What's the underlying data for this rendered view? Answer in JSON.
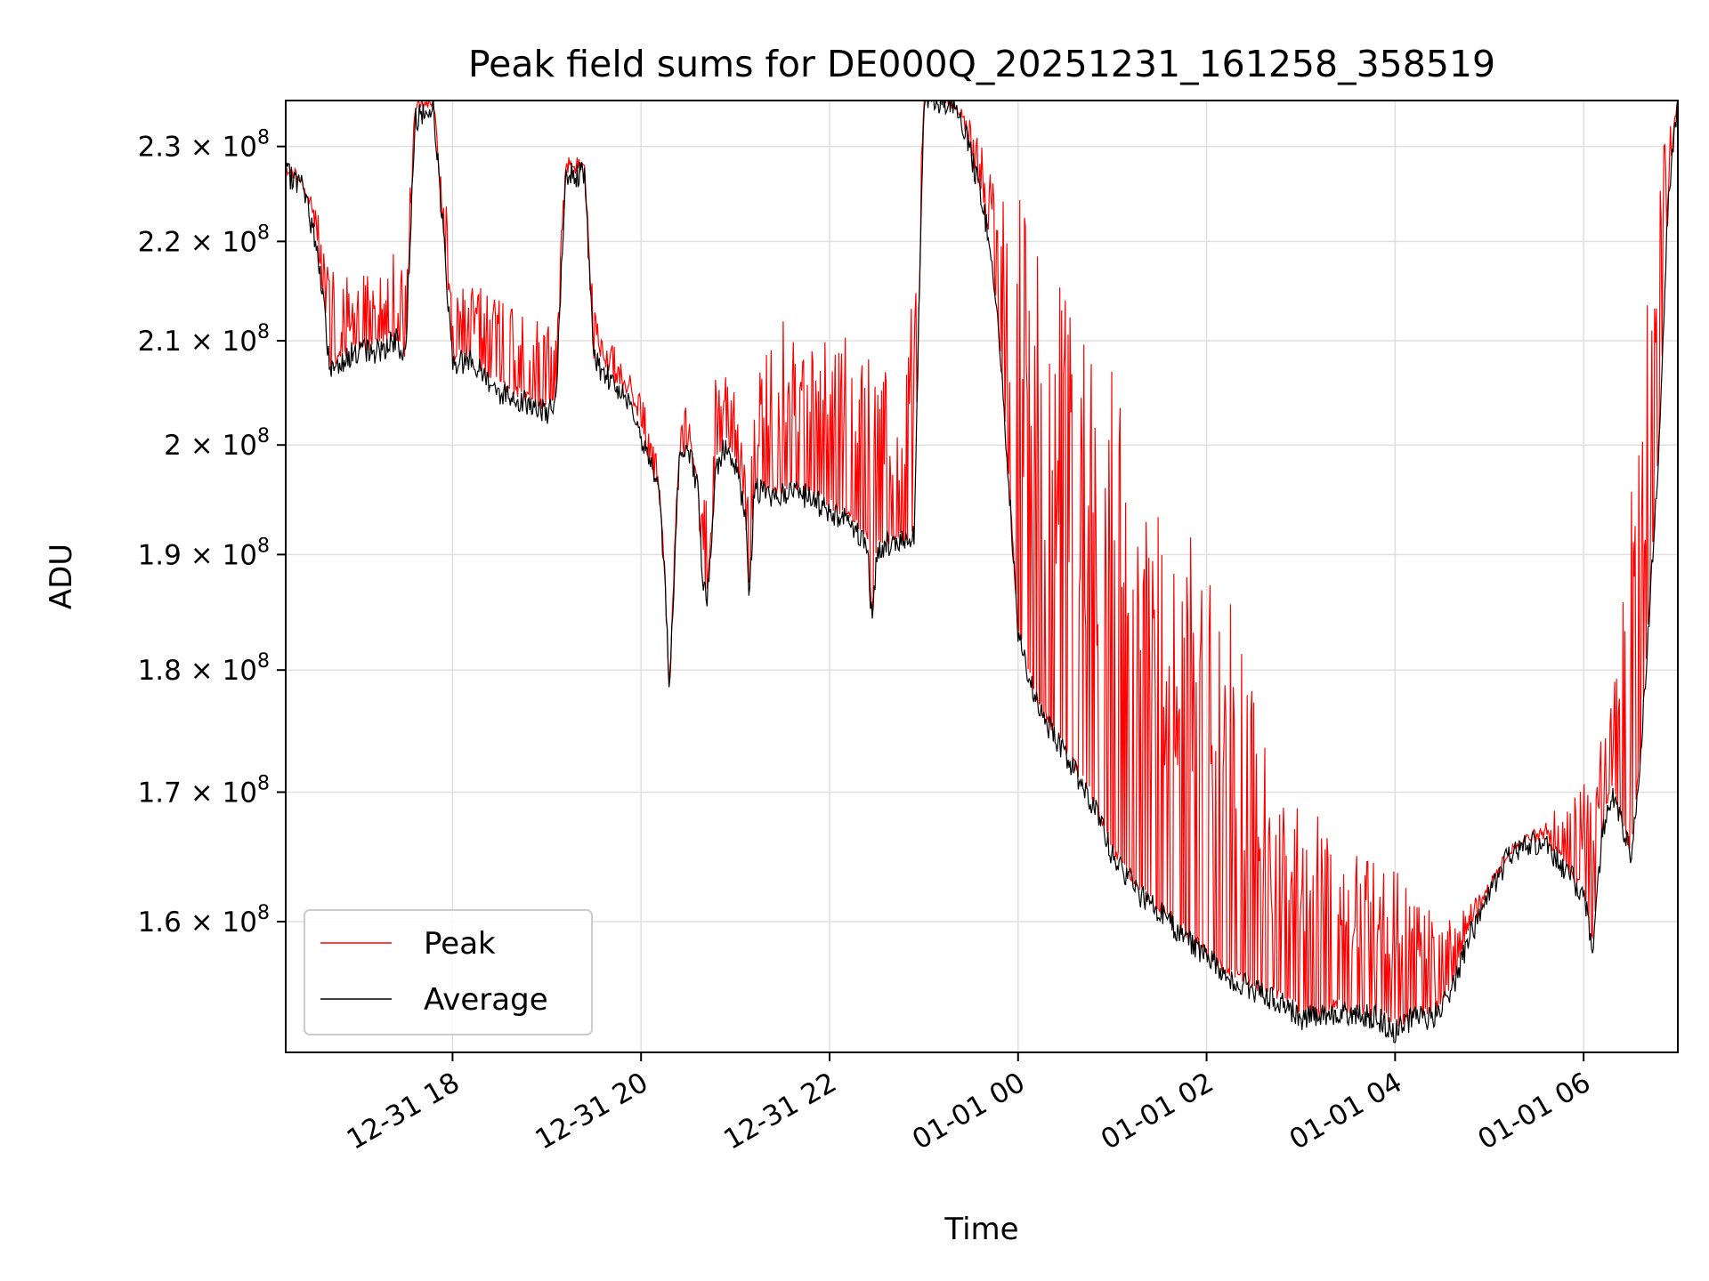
{
  "chart_data": {
    "type": "line",
    "title": "Peak field sums for DE000Q_20251231_161258_358519",
    "xlabel": "Time",
    "ylabel": "ADU",
    "x_tick_labels": [
      "12-31 18",
      "12-31 20",
      "12-31 22",
      "01-01 00",
      "01-01 02",
      "01-01 04",
      "01-01 06"
    ],
    "x_tick_hours": [
      18,
      20,
      22,
      24,
      26,
      28,
      30
    ],
    "xlim_hours": [
      16.23,
      31.0
    ],
    "y_tick_values": [
      160000000.0,
      170000000.0,
      180000000.0,
      190000000.0,
      200000000.0,
      210000000.0,
      220000000.0,
      230000000.0
    ],
    "y_tick_mantissa": [
      "1.6",
      "1.7",
      "1.8",
      "1.9",
      "2",
      "2.1",
      "2.2",
      "2.3"
    ],
    "y_tick_base": "10",
    "y_tick_exp": "8",
    "ylim": [
      150500000.0,
      235000000.0
    ],
    "y_scale": "log",
    "grid": true,
    "legend_position": "lower-left",
    "series": [
      {
        "name": "Peak",
        "color": "#ff0000",
        "x_hours": [
          16.23,
          16.5,
          16.8,
          17.0,
          17.3,
          17.5,
          17.6,
          17.8,
          18.0,
          18.5,
          19.0,
          19.1,
          19.2,
          19.4,
          19.5,
          19.8,
          20.0,
          20.2,
          20.3,
          20.4,
          20.5,
          20.6,
          20.8,
          21.0,
          21.1,
          21.3,
          21.5,
          21.7,
          22.0,
          22.3,
          22.5,
          22.7,
          22.9,
          23.0,
          23.2,
          23.5,
          23.7,
          24.0,
          24.3,
          24.6,
          25.0,
          25.3,
          25.6,
          26.0,
          26.3,
          26.6,
          27.0,
          27.3,
          27.6,
          28.0,
          28.3,
          28.6,
          29.0,
          29.3,
          29.6,
          29.9,
          30.1,
          30.3,
          30.5,
          30.7,
          30.85,
          31.0
        ],
        "values": [
          228000000.0,
          225000000.0,
          216000000.0,
          217000000.0,
          218000000.0,
          220000000.0,
          235000000.0,
          235000000.0,
          218000000.0,
          215000000.0,
          213000000.0,
          212000000.0,
          229000000.0,
          229000000.0,
          213000000.0,
          208000000.0,
          205000000.0,
          198000000.0,
          176000000.0,
          204000000.0,
          205000000.0,
          190000000.0,
          208000000.0,
          205000000.0,
          198000000.0,
          210000000.0,
          212000000.0,
          210000000.0,
          210000000.0,
          212000000.0,
          210000000.0,
          205000000.0,
          215000000.0,
          235000000.0,
          235000000.0,
          233000000.0,
          230000000.0,
          225000000.0,
          220000000.0,
          215000000.0,
          210000000.0,
          202000000.0,
          195000000.0,
          190000000.0,
          185000000.0,
          175000000.0,
          170000000.0,
          168000000.0,
          165000000.0,
          164000000.0,
          162000000.0,
          160000000.0,
          163000000.0,
          166000000.0,
          168000000.0,
          170000000.0,
          172000000.0,
          178000000.0,
          195000000.0,
          220000000.0,
          230000000.0,
          235000000.0
        ]
      },
      {
        "name": "Average",
        "color": "#000000",
        "x_hours": [
          16.23,
          16.4,
          16.55,
          16.65,
          16.7,
          16.8,
          17.0,
          17.2,
          17.4,
          17.5,
          17.6,
          17.8,
          18.0,
          18.2,
          18.5,
          18.8,
          19.0,
          19.1,
          19.2,
          19.4,
          19.5,
          19.7,
          19.9,
          20.0,
          20.1,
          20.2,
          20.25,
          20.3,
          20.4,
          20.5,
          20.6,
          20.65,
          20.7,
          20.8,
          20.9,
          21.0,
          21.1,
          21.15,
          21.2,
          21.4,
          21.6,
          21.8,
          22.0,
          22.2,
          22.4,
          22.45,
          22.5,
          22.6,
          22.8,
          22.9,
          23.0,
          23.2,
          23.4,
          23.6,
          23.7,
          23.8,
          24.0,
          24.2,
          24.5,
          24.8,
          25.0,
          25.3,
          25.6,
          25.9,
          26.2,
          26.5,
          26.8,
          27.0,
          27.2,
          27.4,
          27.6,
          27.8,
          28.0,
          28.2,
          28.4,
          28.6,
          28.8,
          29.0,
          29.2,
          29.4,
          29.6,
          29.8,
          30.0,
          30.1,
          30.2,
          30.3,
          30.5,
          30.6,
          30.7,
          30.8,
          30.9,
          31.0
        ],
        "values": [
          227000000.0,
          226000000.0,
          220000000.0,
          212000000.0,
          207000000.0,
          208000000.0,
          209000000.0,
          209000000.0,
          210000000.0,
          208000000.0,
          233000000.0,
          234000000.0,
          208000000.0,
          208000000.0,
          205000000.0,
          204000000.0,
          203000000.0,
          204000000.0,
          227000000.0,
          227000000.0,
          208000000.0,
          206000000.0,
          204000000.0,
          201000000.0,
          198000000.0,
          195000000.0,
          188000000.0,
          178000000.0,
          198000000.0,
          200000000.0,
          196000000.0,
          188000000.0,
          186000000.0,
          198000000.0,
          200000000.0,
          198000000.0,
          194000000.0,
          186000000.0,
          196000000.0,
          195000000.0,
          196000000.0,
          195000000.0,
          194000000.0,
          193000000.0,
          191000000.0,
          184000000.0,
          190000000.0,
          191000000.0,
          191000000.0,
          192000000.0,
          235000000.0,
          235000000.0,
          233000000.0,
          225000000.0,
          220000000.0,
          210000000.0,
          183000000.0,
          177000000.0,
          173000000.0,
          169000000.0,
          165000000.0,
          162000000.0,
          160000000.0,
          158000000.0,
          156000000.0,
          155000000.0,
          154000000.0,
          153000000.0,
          153000000.0,
          153500000.0,
          153000000.0,
          153000000.0,
          152000000.0,
          153000000.0,
          153000000.0,
          155000000.0,
          159000000.0,
          162000000.0,
          165000000.0,
          166000000.0,
          166000000.0,
          164000000.0,
          162000000.0,
          158000000.0,
          167000000.0,
          170000000.0,
          165000000.0,
          172000000.0,
          185000000.0,
          200000000.0,
          225000000.0,
          235000000.0
        ]
      }
    ]
  }
}
